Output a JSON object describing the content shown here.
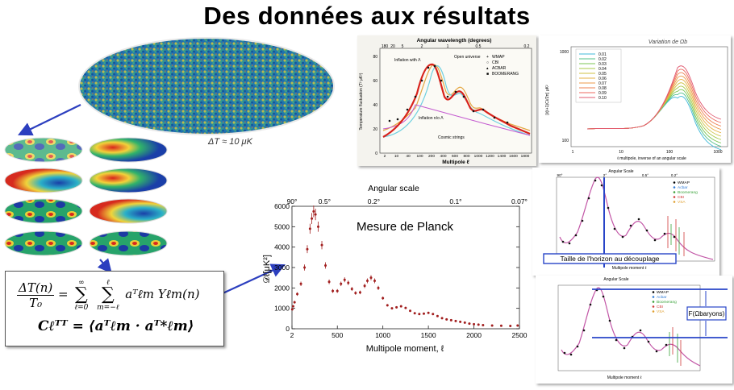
{
  "page": {
    "title": "Des données aux résultats"
  },
  "cmb_map": {
    "caption": "ΔT ≈ 10 μK"
  },
  "formula": {
    "lhs_num": "ΔT(n)",
    "lhs_den": "T₀",
    "sum1_top": "∞",
    "sum1_bottom": "ℓ=0",
    "sum2_top": "ℓ",
    "sum2_bottom": "m=−ℓ",
    "term": "aᵀℓm Yℓm(n)",
    "cl_line": "Cℓᵀᵀ = ⟨aᵀℓm · aᵀ*ℓm⟩"
  },
  "spectrum_theory": {
    "top_axis_title": "Angular wavelength (degrees)",
    "top_ticks": [
      "180",
      "20",
      "5",
      "2",
      "1",
      "0.5",
      "0.2"
    ],
    "ylabel": "Temperature fluctuation (T² μK²)",
    "xlabel": "Multipole ℓ",
    "x_ticks": [
      "2",
      "10",
      "40",
      "100",
      "200",
      "400",
      "600",
      "800",
      "1000",
      "1200",
      "1400",
      "1600",
      "1800"
    ],
    "y_ticks": [
      "0",
      "20",
      "40",
      "60",
      "80"
    ],
    "legend": [
      "WMAP",
      "CBI",
      "ACBAR",
      "BOOMERANG"
    ],
    "labels": {
      "inflation": "Inflation with Λ",
      "open": "Open universe",
      "inflation2": "Inflation n/o Λ",
      "strings": "Cosmic strings"
    }
  },
  "omega_variation": {
    "title": "Variation de Ωb",
    "legend": [
      "0.01",
      "0.02",
      "0.03",
      "0.04",
      "0.05",
      "0.06",
      "0.07",
      "0.08",
      "0.09",
      "0.10"
    ],
    "colors": [
      "#3fb8d8",
      "#53c08a",
      "#7bc653",
      "#a8c848",
      "#cfc243",
      "#e6b145",
      "#ec9a4a",
      "#ee8152",
      "#ec6a5f",
      "#e0586f"
    ],
    "xlabel": "ℓ multipole, inverse of an angular scale",
    "ylabel": "[ℓ(ℓ+1)Cℓ/2π] μK²",
    "x_ticks": [
      "1",
      "10",
      "100",
      "1000"
    ],
    "y_ticks": [
      "100",
      "1000"
    ]
  },
  "planck": {
    "title": "Mesure de Planck",
    "top_axis_title": "Angular scale",
    "top_ticks": [
      "90°",
      "0.5°",
      "0.2°",
      "0.1°",
      "0.07°"
    ],
    "ylabel": "𝒟ℓ[μK²]",
    "xlabel": "Multipole moment, ℓ",
    "y_ticks": [
      "0",
      "1000",
      "2000",
      "3000",
      "4000",
      "5000",
      "6000"
    ],
    "x_ticks": [
      "2",
      "500",
      "1000",
      "1500",
      "2000",
      "2500"
    ],
    "color": "#a11e1e"
  },
  "horizon": {
    "top_axis_title": "Angular Scale",
    "top_ticks": [
      "90°",
      "2°",
      "0.5°",
      "0.2°"
    ],
    "label": "Taille de l'horizon au découplage",
    "xlabel": "Multipole moment ℓ",
    "legend": [
      "WMAP",
      "Acbar",
      "Boomerang",
      "CBI",
      "VSA"
    ],
    "legend_colors": [
      "#000000",
      "#2d7ad6",
      "#3aa23a",
      "#d03a3a",
      "#e0a030"
    ],
    "line_color": "#2845c8"
  },
  "baryon": {
    "top_axis_title": "Angular Scale",
    "label": "F(Ωbaryons)",
    "xlabel": "Multipole moment ℓ",
    "legend": [
      "WMAP",
      "Acbar",
      "Boomerang",
      "CBI",
      "VSA"
    ],
    "legend_colors": [
      "#000000",
      "#2d7ad6",
      "#3aa23a",
      "#d03a3a",
      "#e0a030"
    ],
    "line_color": "#2845c8"
  },
  "chart_data": {
    "type": "scatter",
    "title": "Mesure de Planck",
    "xlabel": "Multipole moment, ℓ",
    "ylabel": "𝒟ℓ[μK²]",
    "xlim": [
      2,
      2500
    ],
    "ylim": [
      0,
      6000
    ],
    "x": [
      5,
      15,
      30,
      60,
      100,
      140,
      170,
      200,
      220,
      240,
      260,
      290,
      330,
      370,
      410,
      450,
      500,
      540,
      580,
      620,
      660,
      700,
      750,
      800,
      830,
      870,
      910,
      950,
      1000,
      1050,
      1100,
      1150,
      1200,
      1250,
      1300,
      1350,
      1400,
      1450,
      1500,
      1550,
      1600,
      1650,
      1700,
      1750,
      1800,
      1850,
      1900,
      1950,
      2000,
      2050,
      2100,
      2200,
      2300,
      2400,
      2480
    ],
    "y": [
      950,
      1100,
      1300,
      1700,
      2200,
      3000,
      3900,
      4900,
      5400,
      5750,
      5600,
      5000,
      4100,
      3100,
      2300,
      1850,
      1850,
      2200,
      2400,
      2250,
      1950,
      1750,
      1780,
      2100,
      2350,
      2500,
      2350,
      2000,
      1500,
      1150,
      1000,
      1050,
      1100,
      1020,
      880,
      760,
      720,
      740,
      780,
      720,
      620,
      520,
      460,
      420,
      380,
      340,
      300,
      250,
      220,
      200,
      180,
      160,
      150,
      140,
      160
    ]
  }
}
